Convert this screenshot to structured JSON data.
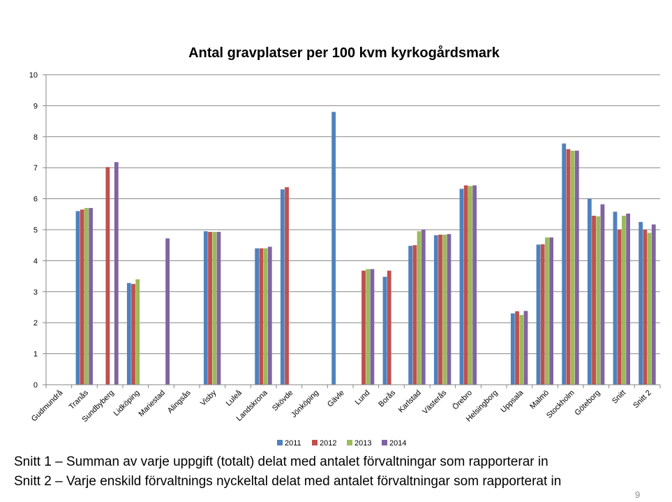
{
  "chart_data": {
    "type": "bar",
    "title": "Antal gravplatser per 100 kvm kyrkogårdsmark",
    "xlabel": "",
    "ylabel": "",
    "ylim": [
      0,
      10
    ],
    "yticks": [
      0,
      1,
      2,
      3,
      4,
      5,
      6,
      7,
      8,
      9,
      10
    ],
    "grid": true,
    "legend_position": "bottom",
    "categories": [
      "Gudmundrå",
      "Tranås",
      "Sundbyberg",
      "Lidköping",
      "Mariestad",
      "Alingsås",
      "Visby",
      "Luleå",
      "Landskrona",
      "Skövde",
      "Jönköping",
      "Gävle",
      "Lund",
      "Borås",
      "Karlstad",
      "Västerås",
      "Örebro",
      "Helsingborg",
      "Uppsala",
      "Malmö",
      "Stockholm",
      "Göteborg",
      "Snitt",
      "Snitt 2"
    ],
    "series": [
      {
        "name": "2011",
        "color": "#4f81bd",
        "values": [
          null,
          5.6,
          null,
          3.28,
          null,
          null,
          4.95,
          null,
          4.4,
          6.3,
          null,
          8.8,
          null,
          3.48,
          4.48,
          4.82,
          6.32,
          null,
          2.3,
          4.52,
          7.78,
          6.0,
          5.58,
          5.25
        ]
      },
      {
        "name": "2012",
        "color": "#c0504d",
        "values": [
          null,
          5.65,
          7.02,
          3.25,
          null,
          null,
          4.93,
          null,
          4.4,
          6.37,
          null,
          null,
          3.68,
          3.68,
          4.5,
          4.84,
          6.43,
          null,
          2.37,
          4.53,
          7.6,
          5.45,
          5.0,
          5.0
        ]
      },
      {
        "name": "2013",
        "color": "#9bbb59",
        "values": [
          null,
          5.7,
          null,
          3.4,
          null,
          null,
          4.93,
          null,
          4.4,
          null,
          null,
          null,
          3.73,
          null,
          4.95,
          4.84,
          6.41,
          null,
          2.25,
          4.75,
          7.55,
          5.43,
          5.45,
          4.9
        ]
      },
      {
        "name": "2014",
        "color": "#8064a2",
        "values": [
          null,
          5.7,
          7.18,
          null,
          4.72,
          null,
          4.93,
          null,
          4.45,
          null,
          null,
          null,
          3.73,
          null,
          5.0,
          4.86,
          6.43,
          null,
          2.38,
          4.75,
          7.55,
          5.82,
          5.52,
          5.17
        ]
      }
    ]
  },
  "notes": [
    "Snitt 1 – Summan av varje uppgift (totalt) delat med antalet förvaltningar som rapporterar in",
    "Snitt 2 – Varje enskild förvaltnings nyckeltal delat med antalet förvaltningar som rapporterat in"
  ],
  "page_number": "9"
}
